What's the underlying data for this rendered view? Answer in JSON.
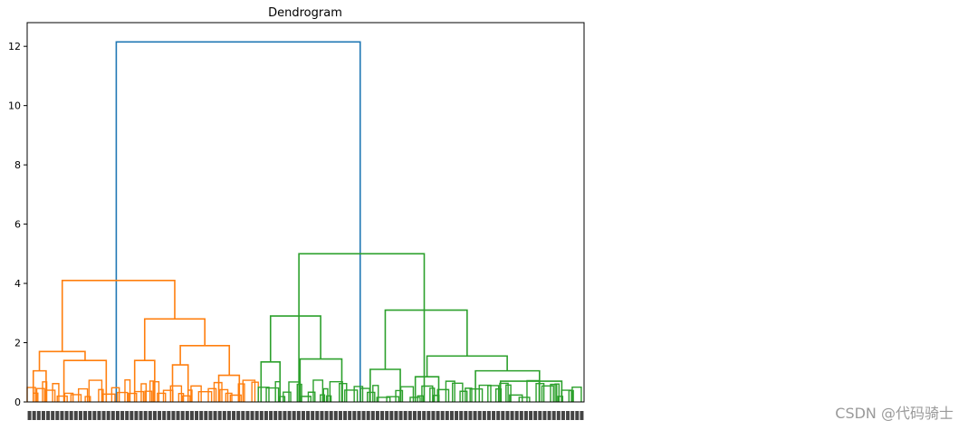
{
  "chart_data": {
    "type": "dendrogram",
    "title": "Dendrogram",
    "xlabel": "",
    "ylabel": "",
    "ylim": [
      0,
      12.8
    ],
    "yticks": [
      0,
      2,
      4,
      6,
      8,
      10,
      12
    ],
    "grid": false,
    "leaf_count": 120,
    "colors": {
      "root": "#1f77b4",
      "cluster_1": "#ff7f0e",
      "cluster_2": "#2ca02c"
    },
    "links": [
      {
        "name": "root",
        "height": 12.15,
        "color": "root",
        "left": 0.16,
        "right": 0.598
      },
      {
        "name": "c1",
        "height": 4.1,
        "color": "cluster_1",
        "left": 0.063,
        "right": 0.265
      },
      {
        "name": "c1-a",
        "height": 1.7,
        "color": "cluster_1",
        "left": 0.022,
        "right": 0.104
      },
      {
        "name": "c1-a1",
        "height": 1.05,
        "color": "cluster_1",
        "left": 0.011,
        "right": 0.034
      },
      {
        "name": "c1-a2",
        "height": 1.4,
        "color": "cluster_1",
        "left": 0.066,
        "right": 0.142
      },
      {
        "name": "c1-b",
        "height": 2.8,
        "color": "cluster_1",
        "left": 0.211,
        "right": 0.319
      },
      {
        "name": "c1-b1",
        "height": 1.4,
        "color": "cluster_1",
        "left": 0.193,
        "right": 0.229
      },
      {
        "name": "c1-b2",
        "height": 1.9,
        "color": "cluster_1",
        "left": 0.275,
        "right": 0.363
      },
      {
        "name": "c1-b21",
        "height": 1.25,
        "color": "cluster_1",
        "left": 0.261,
        "right": 0.289
      },
      {
        "name": "c1-b22",
        "height": 0.9,
        "color": "cluster_1",
        "left": 0.344,
        "right": 0.381
      },
      {
        "name": "c2",
        "height": 5.0,
        "color": "cluster_2",
        "left": 0.488,
        "right": 0.713
      },
      {
        "name": "c2-a",
        "height": 2.9,
        "color": "cluster_2",
        "left": 0.437,
        "right": 0.527
      },
      {
        "name": "c2-a1",
        "height": 1.35,
        "color": "cluster_2",
        "left": 0.42,
        "right": 0.454
      },
      {
        "name": "c2-a2",
        "height": 1.45,
        "color": "cluster_2",
        "left": 0.49,
        "right": 0.565
      },
      {
        "name": "c2-b",
        "height": 3.1,
        "color": "cluster_2",
        "left": 0.643,
        "right": 0.79
      },
      {
        "name": "c2-b1",
        "height": 1.1,
        "color": "cluster_2",
        "left": 0.616,
        "right": 0.67
      },
      {
        "name": "c2-b2",
        "height": 1.55,
        "color": "cluster_2",
        "left": 0.718,
        "right": 0.862
      },
      {
        "name": "c2-b21",
        "height": 0.85,
        "color": "cluster_2",
        "left": 0.697,
        "right": 0.739
      },
      {
        "name": "c2-b22",
        "height": 1.05,
        "color": "cluster_2",
        "left": 0.805,
        "right": 0.92
      },
      {
        "name": "c2-b221",
        "height": 0.7,
        "color": "cluster_2",
        "left": 0.85,
        "right": 0.96
      }
    ]
  },
  "watermark": "CSDN @代码骑士"
}
